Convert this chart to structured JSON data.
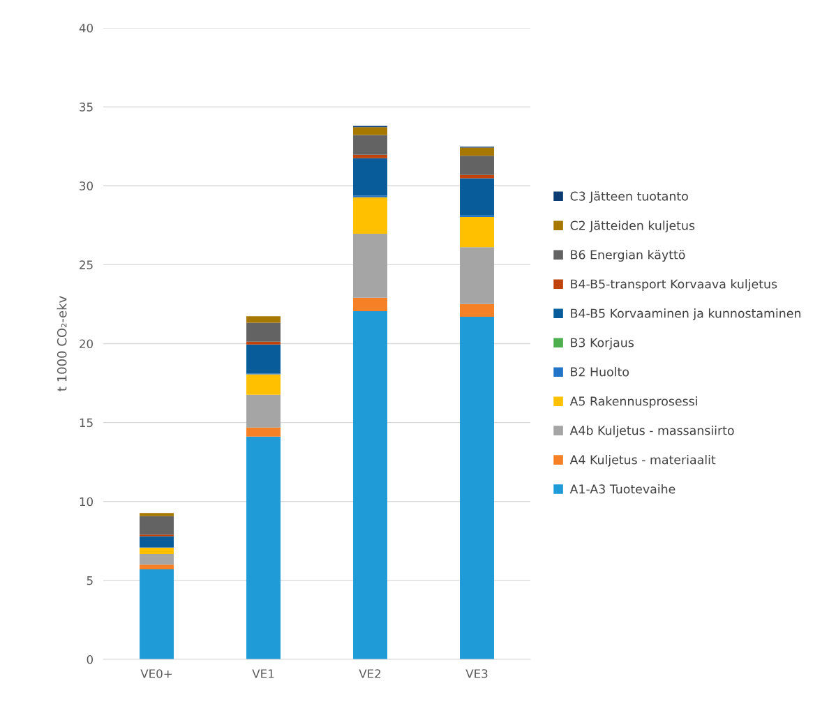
{
  "chart_data": {
    "type": "bar",
    "stacked": true,
    "ylabel": "t 1000 CO₂-ekv",
    "categories": [
      "VE0+",
      "VE1",
      "VE2",
      "VE3"
    ],
    "series": [
      {
        "name": "A1-A3 Tuotevaihe",
        "color": "#1f9bd7",
        "values": [
          5.7,
          14.11,
          22.06,
          21.7
        ]
      },
      {
        "name": "A4 Kuljetus - materiaalit",
        "color": "#f58025",
        "values": [
          0.3,
          0.58,
          0.85,
          0.81
        ]
      },
      {
        "name": "A4b Kuljetus - massansiirto",
        "color": "#a5a5a5",
        "values": [
          0.67,
          2.07,
          4.05,
          3.6
        ]
      },
      {
        "name": "A5 Rakennusprosessi",
        "color": "#ffc000",
        "values": [
          0.4,
          1.29,
          2.31,
          1.91
        ]
      },
      {
        "name": "B2 Huolto",
        "color": "#2274c9",
        "values": [
          0.03,
          0.05,
          0.1,
          0.1
        ]
      },
      {
        "name": "B3 Korjaus",
        "color": "#4cae4c",
        "values": [
          null,
          null,
          null,
          null
        ]
      },
      {
        "name": "B4-B5 Korvaaminen ja kunnostaminen",
        "color": "#075c99",
        "values": [
          0.7,
          1.84,
          2.38,
          2.35
        ]
      },
      {
        "name": "B4-B5-transport Korvaava kuljetus",
        "color": "#c0430c",
        "values": [
          0.1,
          0.18,
          0.22,
          0.22
        ]
      },
      {
        "name": "B6 Energian käyttö",
        "color": "#636363",
        "values": [
          1.17,
          1.21,
          1.24,
          1.21
        ]
      },
      {
        "name": "C2 Jätteiden kuljetus",
        "color": "#a77800",
        "values": [
          0.2,
          0.41,
          0.5,
          0.52
        ]
      },
      {
        "name": "C3 Jätteen tuotanto",
        "color": "#0b3c73",
        "values": [
          null,
          null,
          0.08,
          0.05
        ]
      }
    ],
    "ylim": [
      0,
      40
    ],
    "yticks": [
      0,
      5,
      10,
      15,
      20,
      25,
      30,
      35,
      40
    ],
    "grid": "y",
    "legend": "right"
  }
}
